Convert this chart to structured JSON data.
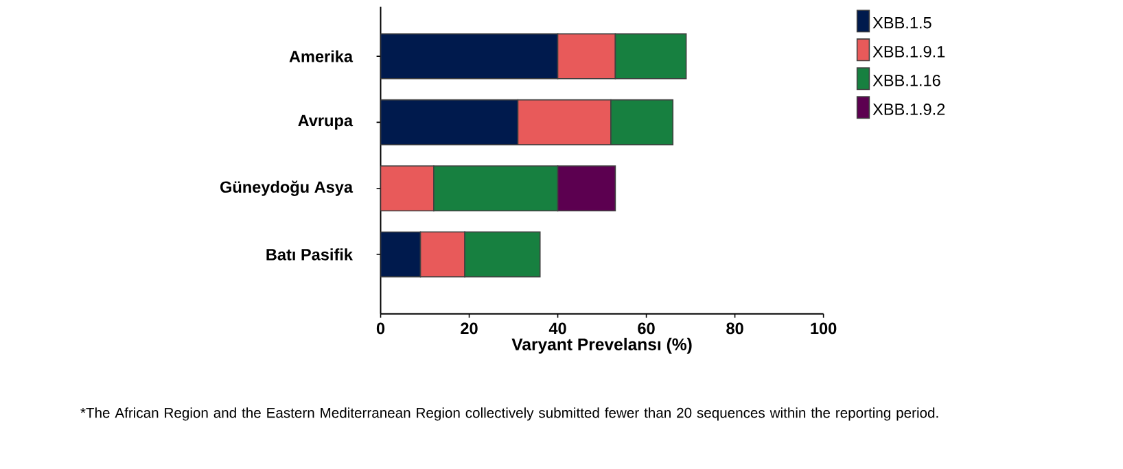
{
  "chart_data": {
    "type": "bar",
    "orientation": "horizontal",
    "stacked": true,
    "categories": [
      "Amerika",
      "Avrupa",
      "Güneydoğu Asya",
      "Batı Pasifik"
    ],
    "series": [
      {
        "name": "XBB.1.5",
        "color": "#001a4d",
        "values": [
          40,
          31,
          null,
          9
        ]
      },
      {
        "name": "XBB.1.9.1",
        "color": "#e85a5a",
        "values": [
          13,
          21,
          12,
          10
        ]
      },
      {
        "name": "XBB.1.16",
        "color": "#178040",
        "values": [
          16,
          14,
          28,
          17
        ]
      },
      {
        "name": "XBB.1.9.2",
        "color": "#5c0050",
        "values": [
          null,
          null,
          13,
          null
        ]
      }
    ],
    "xlabel": "Varyant Prevelansı (%)",
    "xlim": [
      0,
      100
    ],
    "xticks": [
      0,
      20,
      40,
      60,
      80,
      100
    ],
    "legend": "top right",
    "annotations": [
      "*The African Region and the Eastern Mediterranean Region collectively submitted fewer than 20 sequences within the reporting period."
    ]
  }
}
